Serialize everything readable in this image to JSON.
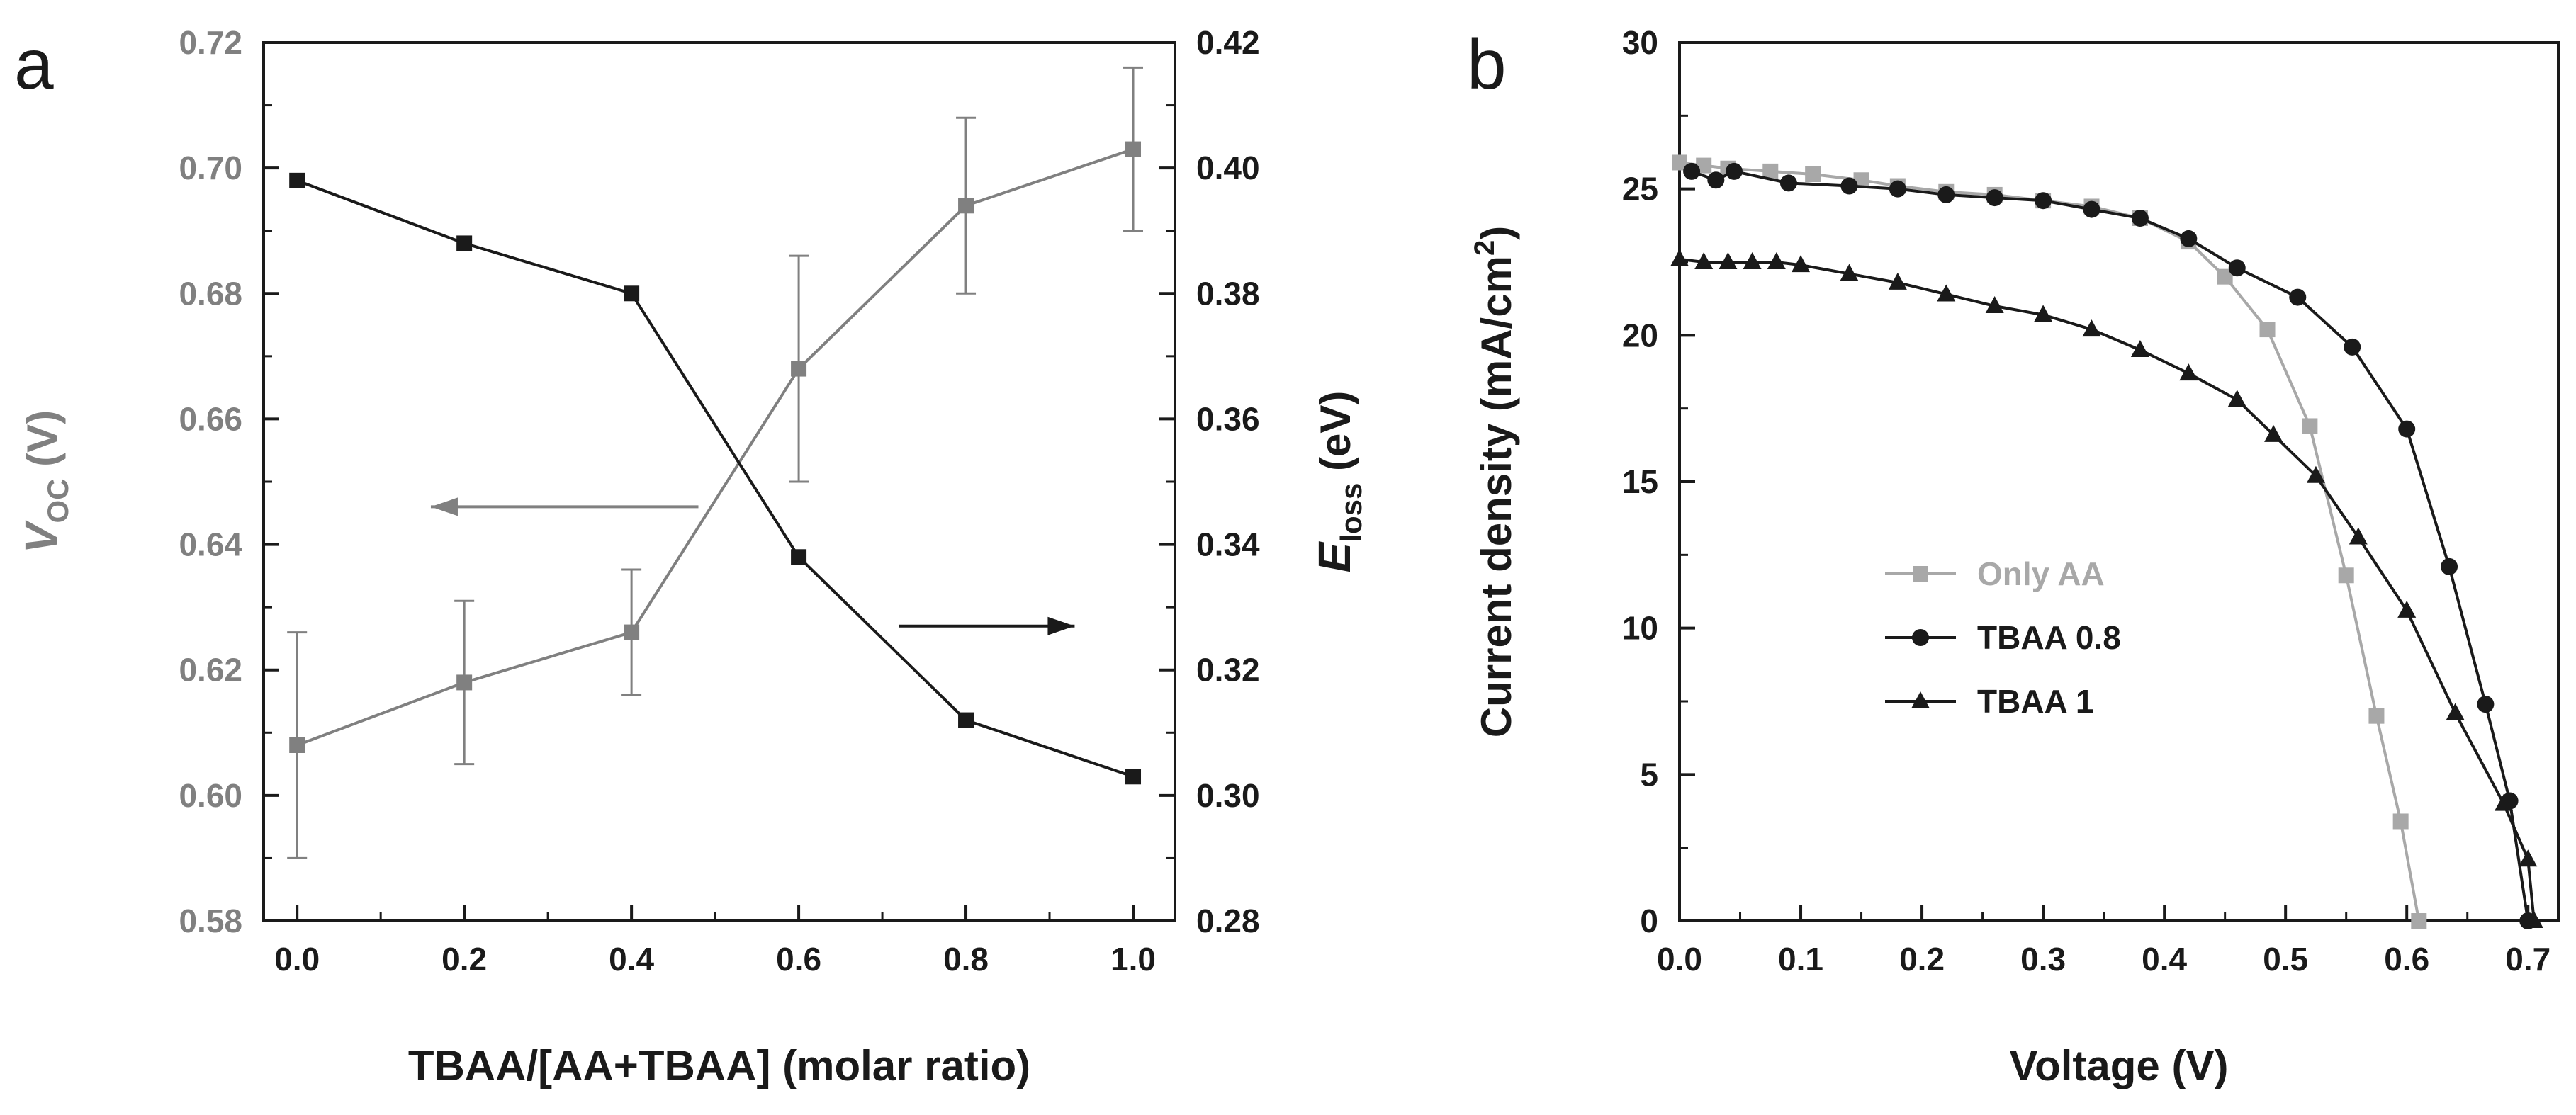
{
  "chart_data": [
    {
      "panel": "a",
      "type": "line",
      "x_label": "TBAA/[AA+TBAA] (molar ratio)",
      "x_ticks": [
        "0.0",
        "0.2",
        "0.4",
        "0.6",
        "0.8",
        "1.0"
      ],
      "xlim": [
        -0.04,
        1.05
      ],
      "y_left": {
        "label_main": "V",
        "label_sub": "OC",
        "label_unit": " (V)",
        "ticks": [
          "0.58",
          "0.60",
          "0.62",
          "0.64",
          "0.66",
          "0.68",
          "0.70",
          "0.72"
        ],
        "ylim": [
          0.58,
          0.72
        ]
      },
      "y_right": {
        "label_main": "E",
        "label_sub": "loss",
        "label_unit": " (eV)",
        "ticks": [
          "0.28",
          "0.30",
          "0.32",
          "0.34",
          "0.36",
          "0.38",
          "0.40",
          "0.42"
        ],
        "ylim": [
          0.28,
          0.42
        ]
      },
      "series": [
        {
          "name": "VOC",
          "axis": "left",
          "color": "#808080",
          "x": [
            0.0,
            0.2,
            0.4,
            0.6,
            0.8,
            1.0
          ],
          "y": [
            0.608,
            0.618,
            0.626,
            0.668,
            0.694,
            0.703
          ],
          "err_low": [
            0.59,
            0.605,
            0.616,
            0.65,
            0.68,
            0.69
          ],
          "err_high": [
            0.626,
            0.631,
            0.636,
            0.686,
            0.708,
            0.716
          ]
        },
        {
          "name": "Eloss",
          "axis": "right",
          "color": "#1a1a1a",
          "x": [
            0.0,
            0.2,
            0.4,
            0.6,
            0.8,
            1.0
          ],
          "y": [
            0.398,
            0.388,
            0.38,
            0.338,
            0.312,
            0.303
          ]
        }
      ],
      "annotations": [
        {
          "type": "arrow",
          "direction": "left",
          "color": "#808080",
          "from": [
            0.48,
            0.646
          ],
          "to": [
            0.16,
            0.646
          ]
        },
        {
          "type": "arrow",
          "direction": "right",
          "color": "#1a1a1a",
          "from": [
            0.72,
            0.327
          ],
          "to": [
            0.93,
            0.327
          ]
        }
      ]
    },
    {
      "panel": "b",
      "type": "line",
      "x_label": "Voltage (V)",
      "x_ticks": [
        "0.0",
        "0.1",
        "0.2",
        "0.3",
        "0.4",
        "0.5",
        "0.6",
        "0.7"
      ],
      "xlim": [
        0.0,
        0.725
      ],
      "y_label_prefix": "Current density (mA/cm",
      "y_label_sup": "2",
      "y_label_suffix": ")",
      "y_ticks": [
        "0",
        "5",
        "10",
        "15",
        "20",
        "25",
        "30"
      ],
      "ylim": [
        0,
        30
      ],
      "series": [
        {
          "name": "Only AA",
          "color": "#a8a8a8",
          "marker": "square",
          "x": [
            0.0,
            0.02,
            0.04,
            0.075,
            0.11,
            0.15,
            0.18,
            0.22,
            0.26,
            0.3,
            0.34,
            0.38,
            0.42,
            0.45,
            0.485,
            0.52,
            0.55,
            0.575,
            0.595,
            0.61
          ],
          "y": [
            25.9,
            25.8,
            25.7,
            25.6,
            25.5,
            25.3,
            25.1,
            24.9,
            24.8,
            24.6,
            24.4,
            24.0,
            23.2,
            22.0,
            20.2,
            16.9,
            11.8,
            7.0,
            3.4,
            0.0
          ]
        },
        {
          "name": "TBAA 0.8",
          "color": "#1a1a1a",
          "marker": "circle",
          "x": [
            0.01,
            0.03,
            0.045,
            0.09,
            0.14,
            0.18,
            0.22,
            0.26,
            0.3,
            0.34,
            0.38,
            0.42,
            0.46,
            0.51,
            0.555,
            0.6,
            0.635,
            0.665,
            0.685,
            0.7
          ],
          "y": [
            25.6,
            25.3,
            25.6,
            25.2,
            25.1,
            25.0,
            24.8,
            24.7,
            24.6,
            24.3,
            24.0,
            23.3,
            22.3,
            21.3,
            19.6,
            16.8,
            12.1,
            7.4,
            4.1,
            0.0
          ]
        },
        {
          "name": "TBAA 1",
          "color": "#1a1a1a",
          "marker": "triangle",
          "x": [
            0.0,
            0.02,
            0.04,
            0.06,
            0.08,
            0.1,
            0.14,
            0.18,
            0.22,
            0.26,
            0.3,
            0.34,
            0.38,
            0.42,
            0.46,
            0.49,
            0.525,
            0.56,
            0.6,
            0.64,
            0.68,
            0.7,
            0.705
          ],
          "y": [
            22.6,
            22.5,
            22.5,
            22.5,
            22.5,
            22.4,
            22.1,
            21.8,
            21.4,
            21.0,
            20.7,
            20.2,
            19.5,
            18.7,
            17.8,
            16.6,
            15.2,
            13.1,
            10.6,
            7.1,
            4.0,
            2.1,
            0.0
          ]
        }
      ],
      "legend": {
        "position": "middle-left",
        "entries": [
          "Only AA",
          "TBAA 0.8",
          "TBAA 1"
        ]
      }
    }
  ]
}
